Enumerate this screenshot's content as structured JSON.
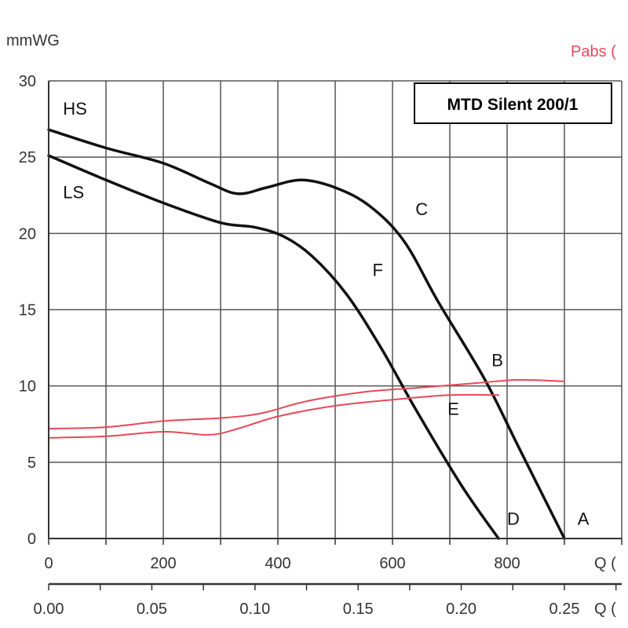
{
  "chart_data": {
    "type": "line",
    "title": "MTD Silent 200/1",
    "ylabel": "mmWG",
    "y2label": "Pabs (",
    "xlabel": "Q (",
    "x2label": "Q (",
    "xlim": [
      0,
      1000
    ],
    "ylim": [
      0,
      30
    ],
    "grid": true,
    "x_ticks": [
      0,
      200,
      400,
      600,
      800
    ],
    "x_tick_labels": [
      "0",
      "200",
      "400",
      "600",
      "800"
    ],
    "x2_ticks": [
      0,
      0.05,
      0.1,
      0.15,
      0.2,
      0.25
    ],
    "x2_tick_labels": [
      "0.00",
      "0.05",
      "0.10",
      "0.15",
      "0.20",
      "0.25"
    ],
    "y_ticks": [
      0,
      5,
      10,
      15,
      20,
      25,
      30
    ],
    "y_tick_labels": [
      "0",
      "5",
      "10",
      "15",
      "20",
      "25",
      "30"
    ],
    "series": [
      {
        "name": "HS",
        "color": "#111111",
        "points": [
          [
            0,
            26.8
          ],
          [
            100,
            25.6
          ],
          [
            200,
            24.6
          ],
          [
            280,
            23.3
          ],
          [
            330,
            22.6
          ],
          [
            380,
            23.0
          ],
          [
            440,
            23.5
          ],
          [
            500,
            23.0
          ],
          [
            560,
            21.8
          ],
          [
            620,
            19.5
          ],
          [
            680,
            15.5
          ],
          [
            760,
            10.5
          ],
          [
            820,
            6.0
          ],
          [
            900,
            0
          ]
        ]
      },
      {
        "name": "LS",
        "color": "#111111",
        "points": [
          [
            0,
            25.1
          ],
          [
            100,
            23.5
          ],
          [
            200,
            22.0
          ],
          [
            300,
            20.7
          ],
          [
            360,
            20.4
          ],
          [
            410,
            19.8
          ],
          [
            460,
            18.5
          ],
          [
            520,
            16.0
          ],
          [
            580,
            12.5
          ],
          [
            640,
            8.5
          ],
          [
            720,
            3.5
          ],
          [
            785,
            0
          ]
        ]
      },
      {
        "name": "",
        "color": "#e8485a",
        "points": [
          [
            0,
            7.2
          ],
          [
            100,
            7.3
          ],
          [
            200,
            7.7
          ],
          [
            300,
            7.9
          ],
          [
            370,
            8.2
          ],
          [
            450,
            9.0
          ],
          [
            550,
            9.6
          ],
          [
            650,
            9.9
          ],
          [
            750,
            10.2
          ],
          [
            820,
            10.4
          ],
          [
            900,
            10.3
          ]
        ]
      },
      {
        "name": "",
        "color": "#e8485a",
        "points": [
          [
            0,
            6.6
          ],
          [
            100,
            6.7
          ],
          [
            200,
            7.0
          ],
          [
            280,
            6.8
          ],
          [
            330,
            7.2
          ],
          [
            400,
            8.0
          ],
          [
            500,
            8.7
          ],
          [
            600,
            9.1
          ],
          [
            700,
            9.4
          ],
          [
            785,
            9.4
          ]
        ]
      }
    ],
    "annotations": [
      {
        "text": "HS",
        "x": 25,
        "y": 27.8
      },
      {
        "text": "LS",
        "x": 25,
        "y": 22.3
      },
      {
        "text": "C",
        "x": 640,
        "y": 21.2
      },
      {
        "text": "F",
        "x": 565,
        "y": 17.2
      },
      {
        "text": "B",
        "x": 773,
        "y": 11.3
      },
      {
        "text": "E",
        "x": 696,
        "y": 8.1
      },
      {
        "text": "D",
        "x": 800,
        "y": 0.9
      },
      {
        "text": "A",
        "x": 923,
        "y": 0.9
      }
    ]
  }
}
